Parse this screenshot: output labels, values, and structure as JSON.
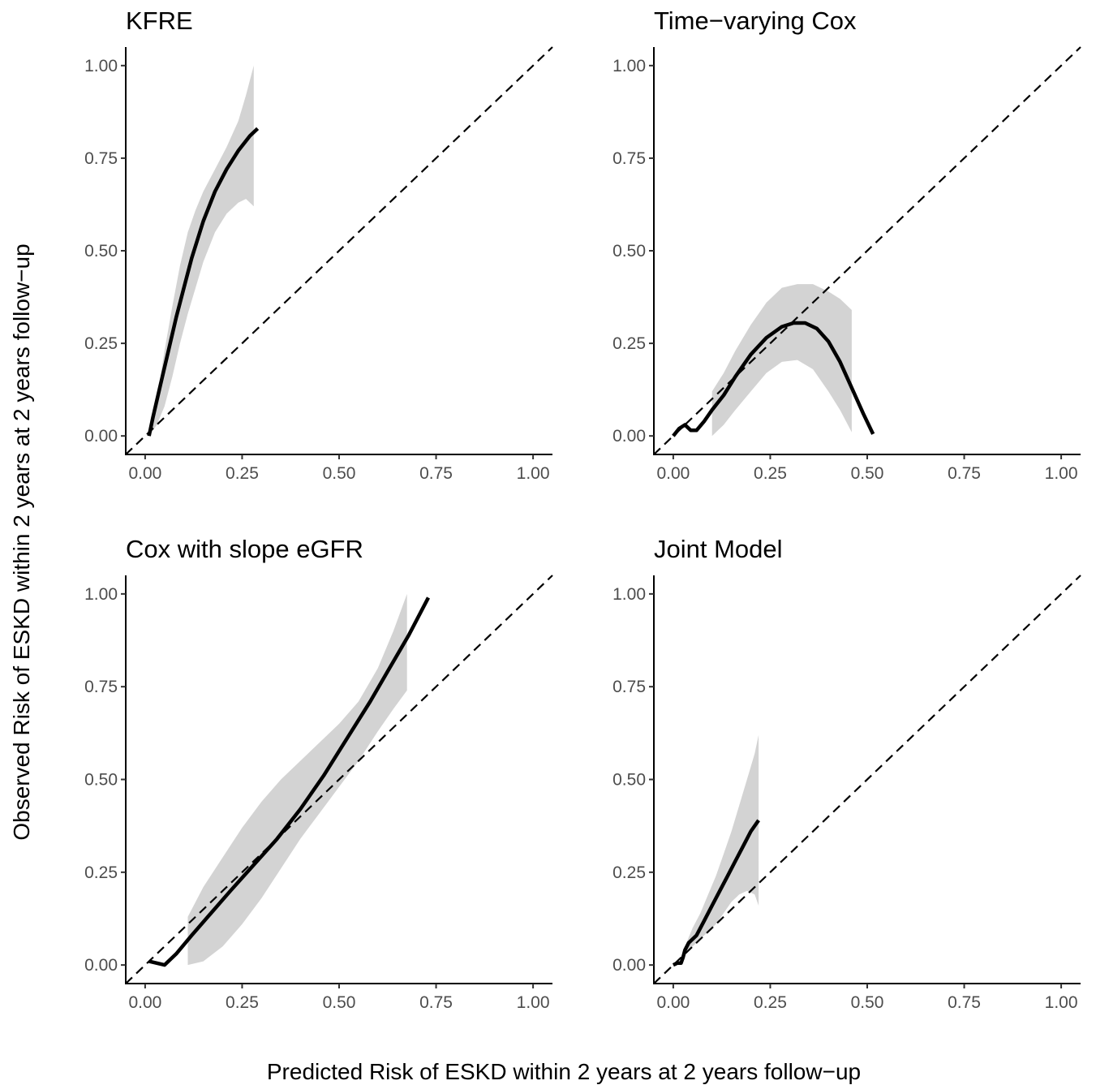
{
  "figure": {
    "xlabel": "Predicted Risk of ESKD within 2 years at 2 years follow−up",
    "ylabel": "Observed Risk of ESKD within 2 years at 2 years follow−up"
  },
  "chart_data": [
    {
      "type": "line",
      "title": "KFRE",
      "xlim": [
        -0.05,
        1.05
      ],
      "ylim": [
        -0.05,
        1.05
      ],
      "xticks": [
        "0.00",
        "0.25",
        "0.50",
        "0.75",
        "1.00"
      ],
      "yticks": [
        "0.00",
        "0.25",
        "0.50",
        "0.75",
        "1.00"
      ],
      "reference_line": "y = x (dashed)",
      "grid": false,
      "calibration_curve": {
        "x": [
          0.01,
          0.02,
          0.04,
          0.06,
          0.08,
          0.1,
          0.12,
          0.15,
          0.18,
          0.21,
          0.24,
          0.27,
          0.29
        ],
        "y": [
          0.0,
          0.05,
          0.14,
          0.23,
          0.32,
          0.4,
          0.48,
          0.58,
          0.66,
          0.72,
          0.77,
          0.81,
          0.83
        ]
      },
      "ci_band": {
        "x": [
          0.01,
          0.03,
          0.05,
          0.07,
          0.09,
          0.11,
          0.13,
          0.15,
          0.18,
          0.21,
          0.24,
          0.26,
          0.28
        ],
        "lower": [
          0.0,
          0.03,
          0.08,
          0.16,
          0.25,
          0.33,
          0.4,
          0.47,
          0.55,
          0.6,
          0.63,
          0.64,
          0.62
        ],
        "upper": [
          0.0,
          0.1,
          0.23,
          0.35,
          0.46,
          0.55,
          0.61,
          0.66,
          0.72,
          0.78,
          0.85,
          0.92,
          1.0
        ]
      }
    },
    {
      "type": "line",
      "title": "Time−varying Cox",
      "xlim": [
        -0.05,
        1.05
      ],
      "ylim": [
        -0.05,
        1.05
      ],
      "xticks": [
        "0.00",
        "0.25",
        "0.50",
        "0.75",
        "1.00"
      ],
      "yticks": [
        "0.00",
        "0.25",
        "0.50",
        "0.75",
        "1.00"
      ],
      "reference_line": "y = x (dashed)",
      "grid": false,
      "calibration_curve": {
        "x": [
          0.0,
          0.015,
          0.03,
          0.045,
          0.06,
          0.08,
          0.1,
          0.13,
          0.16,
          0.2,
          0.24,
          0.28,
          0.31,
          0.34,
          0.37,
          0.4,
          0.43,
          0.46,
          0.49,
          0.515
        ],
        "y": [
          0.0,
          0.02,
          0.03,
          0.015,
          0.015,
          0.04,
          0.07,
          0.11,
          0.16,
          0.22,
          0.265,
          0.295,
          0.305,
          0.305,
          0.29,
          0.255,
          0.2,
          0.13,
          0.06,
          0.005
        ]
      },
      "ci_band": {
        "x": [
          0.1,
          0.13,
          0.16,
          0.2,
          0.24,
          0.28,
          0.32,
          0.36,
          0.4,
          0.43,
          0.46
        ],
        "lower": [
          0.0,
          0.03,
          0.07,
          0.12,
          0.17,
          0.2,
          0.205,
          0.18,
          0.12,
          0.07,
          0.01
        ],
        "upper": [
          0.12,
          0.17,
          0.23,
          0.3,
          0.36,
          0.4,
          0.41,
          0.41,
          0.39,
          0.37,
          0.34
        ]
      }
    },
    {
      "type": "line",
      "title": "Cox with slope eGFR",
      "xlim": [
        -0.05,
        1.05
      ],
      "ylim": [
        -0.05,
        1.05
      ],
      "xticks": [
        "0.00",
        "0.25",
        "0.50",
        "0.75",
        "1.00"
      ],
      "yticks": [
        "0.00",
        "0.25",
        "0.50",
        "0.75",
        "1.00"
      ],
      "reference_line": "y = x (dashed)",
      "grid": false,
      "calibration_curve": {
        "x": [
          0.01,
          0.03,
          0.05,
          0.08,
          0.12,
          0.17,
          0.22,
          0.28,
          0.34,
          0.4,
          0.46,
          0.52,
          0.58,
          0.63,
          0.68,
          0.73
        ],
        "y": [
          0.01,
          0.005,
          0.0,
          0.03,
          0.08,
          0.14,
          0.2,
          0.27,
          0.34,
          0.42,
          0.51,
          0.61,
          0.71,
          0.8,
          0.89,
          0.99
        ]
      },
      "ci_band": {
        "x": [
          0.11,
          0.15,
          0.2,
          0.25,
          0.3,
          0.35,
          0.4,
          0.45,
          0.5,
          0.55,
          0.6,
          0.64,
          0.675
        ],
        "lower": [
          0.0,
          0.01,
          0.05,
          0.11,
          0.18,
          0.26,
          0.34,
          0.41,
          0.48,
          0.55,
          0.63,
          0.69,
          0.74
        ],
        "upper": [
          0.13,
          0.21,
          0.29,
          0.37,
          0.44,
          0.5,
          0.55,
          0.6,
          0.65,
          0.71,
          0.8,
          0.9,
          1.0
        ]
      }
    },
    {
      "type": "line",
      "title": "Joint Model",
      "xlim": [
        -0.05,
        1.05
      ],
      "ylim": [
        -0.05,
        1.05
      ],
      "xticks": [
        "0.00",
        "0.25",
        "0.50",
        "0.75",
        "1.00"
      ],
      "yticks": [
        "0.00",
        "0.25",
        "0.50",
        "0.75",
        "1.00"
      ],
      "reference_line": "y = x (dashed)",
      "grid": false,
      "calibration_curve": {
        "x": [
          0.0,
          0.01,
          0.02,
          0.025,
          0.03,
          0.04,
          0.06,
          0.08,
          0.1,
          0.12,
          0.14,
          0.16,
          0.18,
          0.2,
          0.22
        ],
        "y": [
          0.0,
          0.005,
          0.005,
          0.02,
          0.04,
          0.06,
          0.08,
          0.12,
          0.16,
          0.2,
          0.24,
          0.28,
          0.32,
          0.36,
          0.39
        ]
      },
      "ci_band": {
        "x": [
          0.03,
          0.05,
          0.07,
          0.09,
          0.11,
          0.13,
          0.15,
          0.17,
          0.19,
          0.21,
          0.22
        ],
        "lower": [
          0.03,
          0.05,
          0.07,
          0.09,
          0.11,
          0.14,
          0.17,
          0.19,
          0.2,
          0.19,
          0.16
        ],
        "upper": [
          0.05,
          0.1,
          0.14,
          0.19,
          0.24,
          0.3,
          0.36,
          0.43,
          0.5,
          0.57,
          0.62
        ]
      }
    }
  ]
}
